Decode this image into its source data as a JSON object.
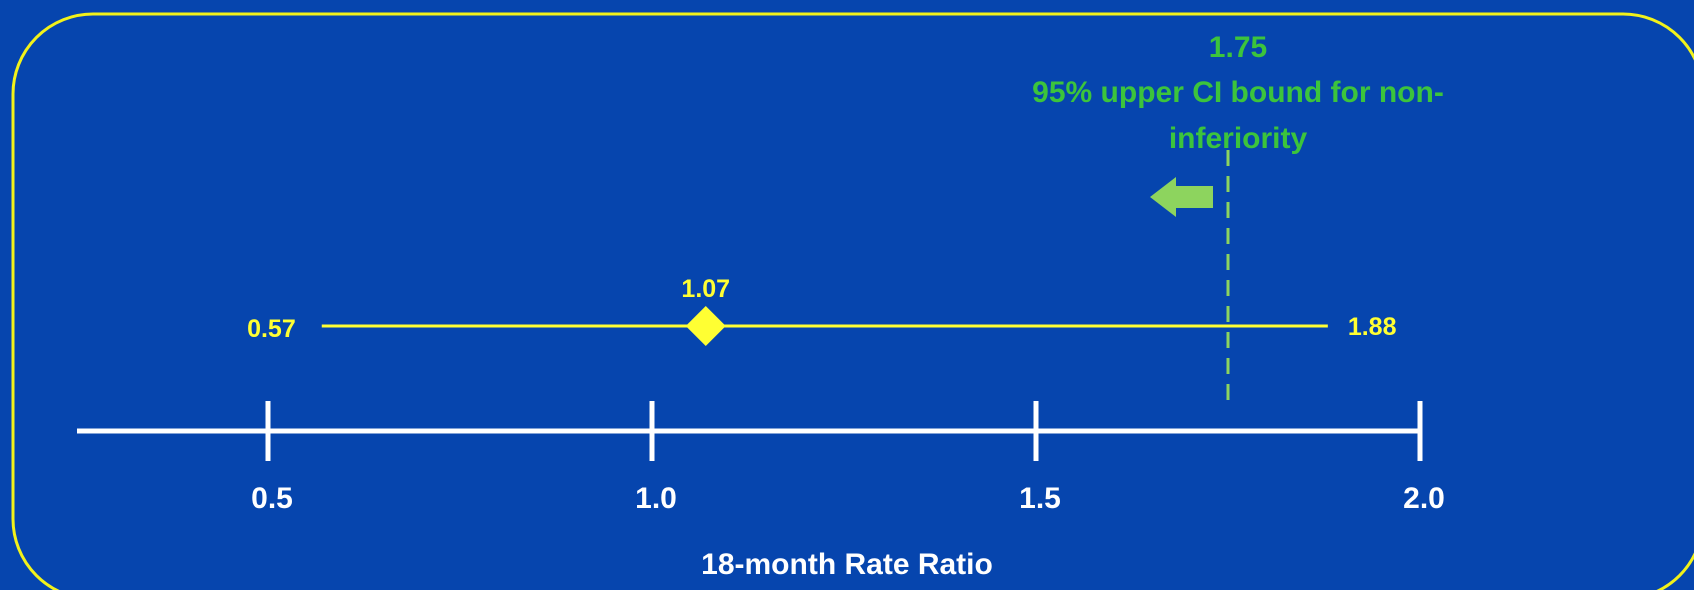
{
  "chart_data": {
    "type": "forest",
    "xlabel": "18-month Rate Ratio",
    "xlim": [
      0.25,
      2.0
    ],
    "ticks": [
      0.5,
      1.0,
      1.5,
      2.0
    ],
    "tick_labels": [
      "0.5",
      "1.0",
      "1.5",
      "2.0"
    ],
    "estimate": {
      "point": 1.07,
      "lower": 0.57,
      "upper": 1.88,
      "point_label": "1.07",
      "lower_label": "0.57",
      "upper_label": "1.88"
    },
    "threshold": {
      "value": 1.75,
      "value_label": "1.75",
      "caption_line1": "95% upper CI bound for non-",
      "caption_line2": "inferiority"
    }
  },
  "colors": {
    "background": "#0645AE",
    "frame": "#F2F21A",
    "interval": "#FFFF33",
    "axis": "#FFFFFF",
    "threshold": "#8DD45E",
    "threshold_text": "#3CC43C",
    "arrow": "#8DD45E"
  }
}
